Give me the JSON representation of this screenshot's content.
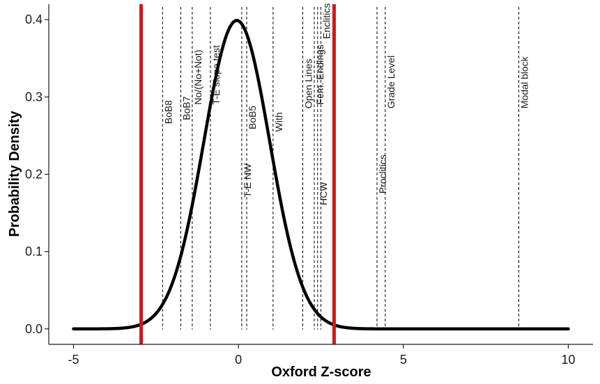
{
  "chart_data": {
    "type": "line",
    "title": "",
    "xlabel": "Oxford Z-score",
    "ylabel": "Probability Density",
    "xlim": [
      -5.75,
      10.75
    ],
    "ylim": [
      -0.02,
      0.42
    ],
    "x_ticks": [
      -5,
      0,
      5,
      10
    ],
    "x_tick_labels": [
      "-5",
      "0",
      "5",
      "10"
    ],
    "y_ticks": [
      0.0,
      0.1,
      0.2,
      0.3,
      0.4
    ],
    "y_tick_labels": [
      "0.0",
      "0.1",
      "0.2",
      "0.3",
      "0.4"
    ],
    "grid": false,
    "legend": "none",
    "series": [
      {
        "kind": "normal-density-curve",
        "mean": -0.05,
        "sd": 1.0,
        "x_range": [
          -5,
          10
        ],
        "color": "#000000"
      }
    ],
    "threshold_lines": [
      {
        "x": -2.95,
        "color": "#d0161b"
      },
      {
        "x": 2.9,
        "color": "#d0161b"
      }
    ],
    "reference_lines": [
      {
        "x": -2.3,
        "label": "BoB8",
        "label_y": 0.265
      },
      {
        "x": -1.75,
        "label": "BoB7",
        "label_y": 0.27
      },
      {
        "x": -1.4,
        "label": "No/(No+Not)",
        "label_y": 0.29
      },
      {
        "x": -0.85,
        "label": "T-E slope test",
        "label_y": 0.29
      },
      {
        "x": 0.1,
        "label": "T-E NW",
        "label_y": 0.17
      },
      {
        "x": 0.25,
        "label": "BoB5",
        "label_y": 0.258
      },
      {
        "x": 1.05,
        "label": "With",
        "label_y": 0.255
      },
      {
        "x": 1.95,
        "label": "Open Lines",
        "label_y": 0.285
      },
      {
        "x": 2.3,
        "label": "Fem. Endings",
        "label_y": 0.29
      },
      {
        "x": 2.4,
        "label": "HCW",
        "label_y": 0.16
      },
      {
        "x": 2.5,
        "label": "Enclitics",
        "label_y": 0.375
      },
      {
        "x": 4.2,
        "label": "Proclitics",
        "label_y": 0.175
      },
      {
        "x": 4.45,
        "label": "Grade Level",
        "label_y": 0.285
      },
      {
        "x": 8.5,
        "label": "Modal block",
        "label_y": 0.285
      }
    ]
  }
}
